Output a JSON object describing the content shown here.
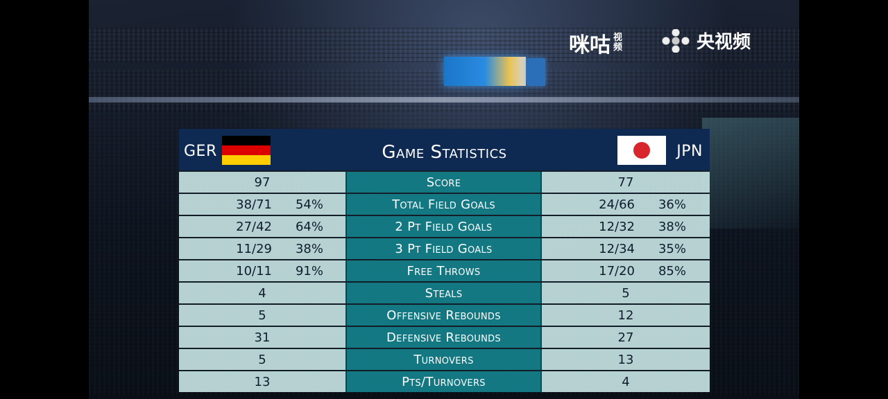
{
  "watermarks": {
    "migu_main": "咪咕",
    "migu_small": "视频",
    "cctv": "央视频"
  },
  "board": {
    "title": "Game Statistics",
    "team_left": {
      "code": "GER",
      "flag": "germany-flag"
    },
    "team_right": {
      "code": "JPN",
      "flag": "japan-flag"
    }
  },
  "stats": [
    {
      "label": "Score",
      "left": "97",
      "right": "77"
    },
    {
      "label": "Total Field Goals",
      "left": "38/71",
      "left_pct": "54%",
      "right": "24/66",
      "right_pct": "36%"
    },
    {
      "label": "2 Pt Field Goals",
      "left": "27/42",
      "left_pct": "64%",
      "right": "12/32",
      "right_pct": "38%"
    },
    {
      "label": "3 Pt Field Goals",
      "left": "11/29",
      "left_pct": "38%",
      "right": "12/34",
      "right_pct": "35%"
    },
    {
      "label": "Free Throws",
      "left": "10/11",
      "left_pct": "91%",
      "right": "17/20",
      "right_pct": "85%"
    },
    {
      "label": "Steals",
      "left": "4",
      "right": "5"
    },
    {
      "label": "Offensive Rebounds",
      "left": "5",
      "right": "12"
    },
    {
      "label": "Defensive Rebounds",
      "left": "31",
      "right": "27"
    },
    {
      "label": "Turnovers",
      "left": "5",
      "right": "13"
    },
    {
      "label": "Pts/Turnovers",
      "left": "13",
      "right": "4"
    }
  ],
  "colors": {
    "header_bg": "#0f2a52",
    "mid_column": "#137882",
    "side_column": "#c4e0e0"
  }
}
